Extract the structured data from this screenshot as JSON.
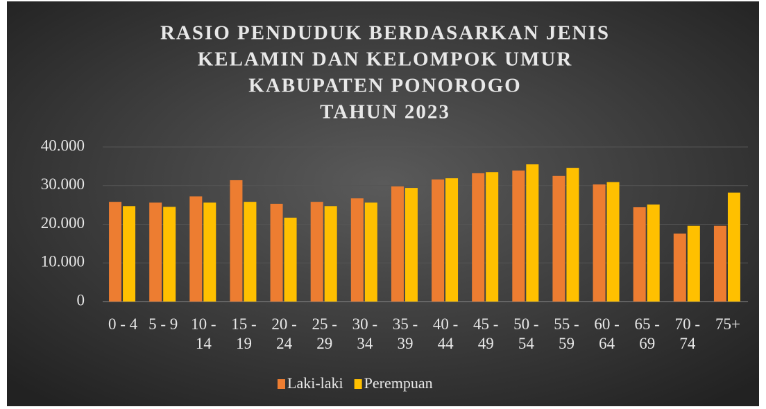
{
  "chart_data": {
    "type": "bar",
    "title": [
      "RASIO PENDUDUK BERDASARKAN JENIS",
      "KELAMIN DAN KELOMPOK UMUR",
      "KABUPATEN PONOROGO",
      "TAHUN 2023"
    ],
    "categories": [
      "0 - 4",
      "5 - 9",
      "10 - 14",
      "15 - 19",
      "20 - 24",
      "25 - 29",
      "30 - 34",
      "35 - 39",
      "40 - 44",
      "45 - 49",
      "50 - 54",
      "55 - 59",
      "60 - 64",
      "65 - 69",
      "70 - 74",
      "75+"
    ],
    "series": [
      {
        "name": "Laki-laki",
        "color": "#ed7d31",
        "values": [
          25800,
          25600,
          27200,
          31400,
          25300,
          25800,
          26700,
          29800,
          31600,
          33200,
          33900,
          32500,
          30300,
          24400,
          17600,
          19600
        ]
      },
      {
        "name": "Perempuan",
        "color": "#ffc000",
        "values": [
          24700,
          24500,
          25600,
          25800,
          21700,
          24700,
          25600,
          29400,
          31900,
          33500,
          35500,
          34600,
          30900,
          25100,
          19600,
          28200
        ]
      }
    ],
    "ylim": [
      0,
      40000
    ],
    "yticks": [
      0,
      {
        "value": 10000,
        "label": "10.000"
      },
      {
        "value": 20000,
        "label": "20.000"
      },
      {
        "value": 30000,
        "label": "30.000"
      },
      {
        "value": 40000,
        "label": "40.000"
      }
    ],
    "grid": true,
    "legend": "bottom"
  }
}
